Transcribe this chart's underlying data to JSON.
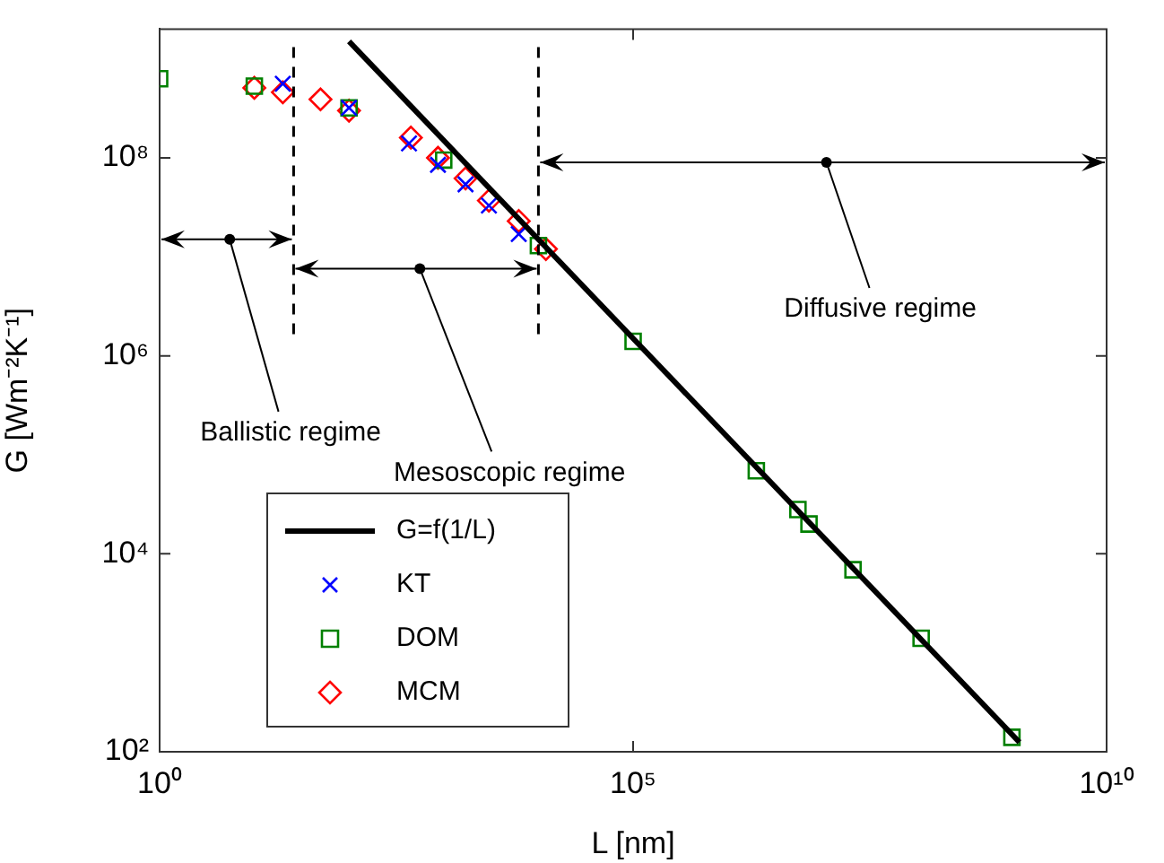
{
  "chart_data": {
    "type": "scatter",
    "xlabel": "L [nm]",
    "ylabel": "G [Wm⁻²K⁻¹]",
    "log": "xy",
    "xlim": [
      1,
      10000000000
    ],
    "xticks": [
      {
        "value": 1,
        "label": "10⁰"
      },
      {
        "value": 100000,
        "label": "10⁵"
      },
      {
        "value": 10000000000,
        "label": "10¹⁰"
      }
    ],
    "ylim": [
      100,
      2000000000
    ],
    "yticks": [
      {
        "value": 100,
        "label": "10²"
      },
      {
        "value": 10000,
        "label": "10⁴"
      },
      {
        "value": 1000000,
        "label": "10⁶"
      },
      {
        "value": 100000000,
        "label": "10⁸"
      }
    ],
    "grid": false,
    "legend": "bottom left",
    "series": [
      {
        "name": "G=f(1/L)",
        "type": "line",
        "color": "#000000",
        "marker": "none",
        "line_style": "solid",
        "x": [
          100,
          1200000000
        ],
        "values": [
          1500000000,
          125
        ]
      },
      {
        "name": "KT",
        "color": "#0000ff",
        "marker": "cross",
        "x": [
          20,
          100,
          430,
          870,
          1700,
          3000,
          6200
        ],
        "values": [
          560000000,
          320000000,
          140000000,
          85000000,
          54000000,
          33000000,
          17000000
        ]
      },
      {
        "name": "DOM",
        "color": "#008000",
        "marker": "square",
        "x": [
          1,
          10,
          100,
          1000,
          10000,
          100000,
          2000000,
          5500000,
          7200000,
          21000000,
          110000000,
          1000000000
        ],
        "values": [
          630000000,
          530000000,
          320000000,
          95000000,
          13000000,
          1400000,
          69000,
          28000,
          20000,
          6900,
          1400,
          140
        ]
      },
      {
        "name": "MCM",
        "color": "#ff0000",
        "marker": "diamond",
        "x": [
          10,
          20,
          50,
          100,
          450,
          870,
          1700,
          3000,
          6200,
          12000
        ],
        "values": [
          510000000,
          460000000,
          390000000,
          300000000,
          160000000,
          100000000,
          62000000,
          37000000,
          23000000,
          12000000
        ]
      }
    ],
    "ref_lines": [
      {
        "axis": "x",
        "value": 26,
        "color": "#000000",
        "line_style": "dashed"
      },
      {
        "axis": "x",
        "value": 10000,
        "color": "#000000",
        "line_style": "dashed"
      }
    ],
    "annotations": [
      {
        "text": "Ballistic regime",
        "x": 5.5,
        "y": 15000000
      },
      {
        "text": "Mesoscopic regime",
        "x": 560,
        "y": 7600000
      },
      {
        "text": "Diffusive regime",
        "x": 11000000,
        "y": 90000000
      }
    ]
  }
}
